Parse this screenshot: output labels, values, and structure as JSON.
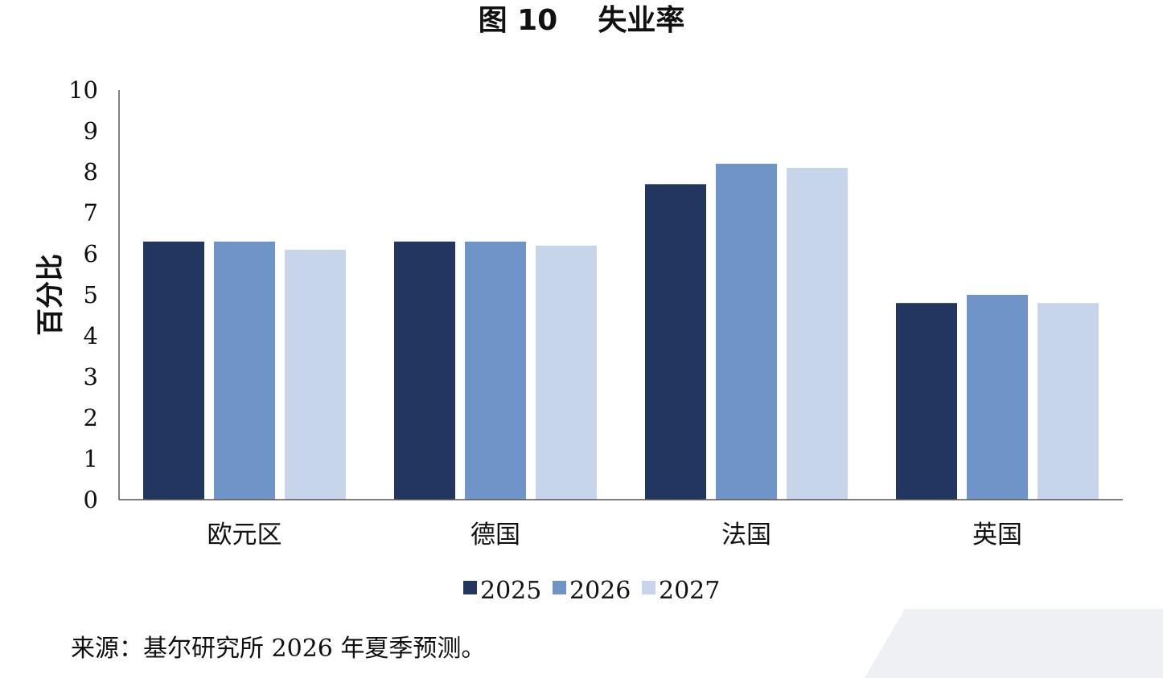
{
  "title": {
    "figure_number": "图 10",
    "text": "失业率"
  },
  "source_note": "来源：基尔研究所 2026 年夏季预测。",
  "colors": {
    "axis": "#555555",
    "corner_shape": "#eef0f4"
  },
  "chart_data": {
    "type": "bar",
    "ylabel": "百分比",
    "xlabel": "",
    "ylim": [
      0,
      10
    ],
    "yticks": [
      "0",
      "1",
      "2",
      "3",
      "4",
      "5",
      "6",
      "7",
      "8",
      "9",
      "10"
    ],
    "grid": false,
    "legend_position": "bottom",
    "categories": [
      "欧元区",
      "德国",
      "法国",
      "英国"
    ],
    "series": [
      {
        "name": "2025",
        "color": "#22375f",
        "values": [
          6.3,
          6.3,
          7.7,
          4.8
        ]
      },
      {
        "name": "2026",
        "color": "#6f94c8",
        "values": [
          6.3,
          6.3,
          8.2,
          5.0
        ]
      },
      {
        "name": "2027",
        "color": "#c7d5ea",
        "values": [
          6.1,
          6.2,
          8.1,
          4.8
        ]
      }
    ]
  }
}
